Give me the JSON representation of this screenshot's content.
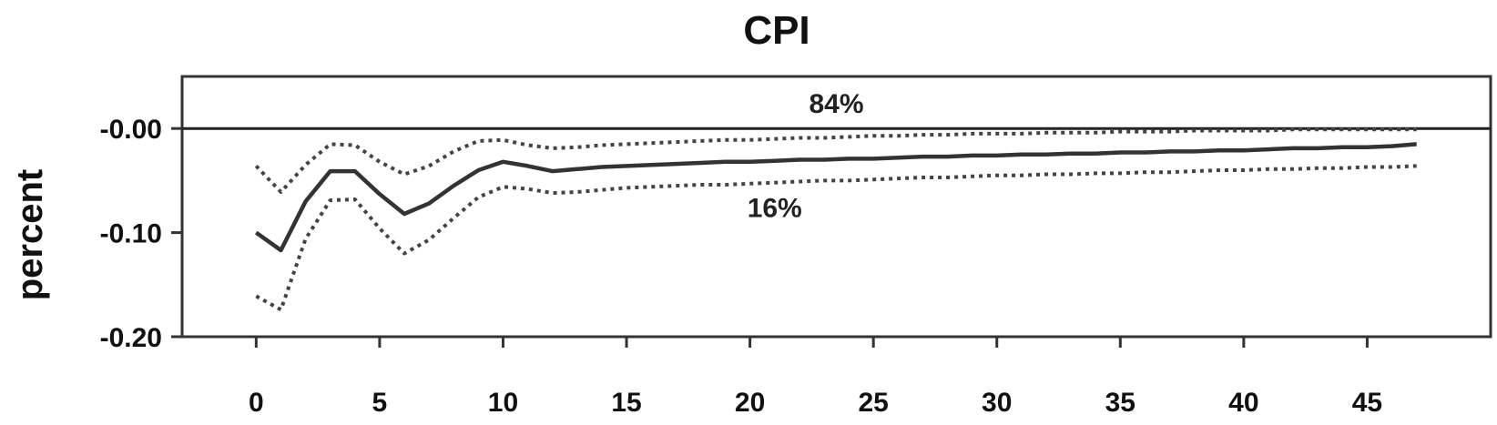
{
  "chart_data": {
    "type": "line",
    "title": "CPI",
    "xlabel": "",
    "ylabel": "percent",
    "xlim": [
      -3,
      50
    ],
    "ylim": [
      -0.2,
      0.05
    ],
    "x_ticks": [
      0,
      5,
      10,
      15,
      20,
      25,
      30,
      35,
      40,
      45
    ],
    "y_ticks": [
      {
        "value": 0,
        "label": "-0.00"
      },
      {
        "value": -0.1,
        "label": "-0.10"
      },
      {
        "value": -0.2,
        "label": "-0.20"
      }
    ],
    "zero_line": true,
    "grid": false,
    "x": [
      0,
      1,
      2,
      3,
      4,
      5,
      6,
      7,
      8,
      9,
      10,
      11,
      12,
      13,
      14,
      15,
      16,
      17,
      18,
      19,
      20,
      21,
      22,
      23,
      24,
      25,
      26,
      27,
      28,
      29,
      30,
      31,
      32,
      33,
      34,
      35,
      36,
      37,
      38,
      39,
      40,
      41,
      42,
      43,
      44,
      45,
      46,
      47
    ],
    "series": [
      {
        "name": "",
        "style": "solid",
        "color": "#333333",
        "values": [
          -0.1,
          -0.117,
          -0.07,
          -0.041,
          -0.041,
          -0.063,
          -0.082,
          -0.072,
          -0.055,
          -0.04,
          -0.032,
          -0.036,
          -0.041,
          -0.039,
          -0.037,
          -0.036,
          -0.035,
          -0.034,
          -0.033,
          -0.032,
          -0.032,
          -0.031,
          -0.03,
          -0.03,
          -0.029,
          -0.029,
          -0.028,
          -0.027,
          -0.027,
          -0.026,
          -0.026,
          -0.025,
          -0.025,
          -0.024,
          -0.024,
          -0.023,
          -0.023,
          -0.022,
          -0.022,
          -0.021,
          -0.021,
          -0.02,
          -0.019,
          -0.019,
          -0.018,
          -0.018,
          -0.017,
          -0.015
        ]
      },
      {
        "name": "84%",
        "style": "dotted",
        "color": "#444444",
        "values": [
          -0.036,
          -0.061,
          -0.035,
          -0.015,
          -0.016,
          -0.032,
          -0.044,
          -0.036,
          -0.022,
          -0.012,
          -0.011,
          -0.016,
          -0.019,
          -0.018,
          -0.016,
          -0.015,
          -0.014,
          -0.013,
          -0.012,
          -0.011,
          -0.011,
          -0.01,
          -0.009,
          -0.009,
          -0.008,
          -0.007,
          -0.007,
          -0.006,
          -0.006,
          -0.005,
          -0.005,
          -0.005,
          -0.004,
          -0.004,
          -0.004,
          -0.003,
          -0.003,
          -0.003,
          -0.002,
          -0.002,
          -0.002,
          -0.002,
          -0.001,
          -0.001,
          -0.001,
          -0.001,
          -0.001,
          -0.001
        ]
      },
      {
        "name": "16%",
        "style": "dotted",
        "color": "#444444",
        "values": [
          -0.161,
          -0.174,
          -0.106,
          -0.069,
          -0.068,
          -0.096,
          -0.12,
          -0.107,
          -0.086,
          -0.066,
          -0.056,
          -0.058,
          -0.062,
          -0.061,
          -0.059,
          -0.057,
          -0.056,
          -0.055,
          -0.054,
          -0.054,
          -0.053,
          -0.052,
          -0.051,
          -0.05,
          -0.05,
          -0.049,
          -0.048,
          -0.047,
          -0.047,
          -0.046,
          -0.045,
          -0.045,
          -0.044,
          -0.044,
          -0.043,
          -0.043,
          -0.042,
          -0.042,
          -0.041,
          -0.04,
          -0.04,
          -0.039,
          -0.039,
          -0.038,
          -0.038,
          -0.037,
          -0.037,
          -0.036
        ]
      }
    ],
    "annotations": [
      {
        "text": "84%",
        "x": 23.5,
        "y": 0.015
      },
      {
        "text": "16%",
        "x": 21,
        "y": -0.085
      }
    ]
  }
}
